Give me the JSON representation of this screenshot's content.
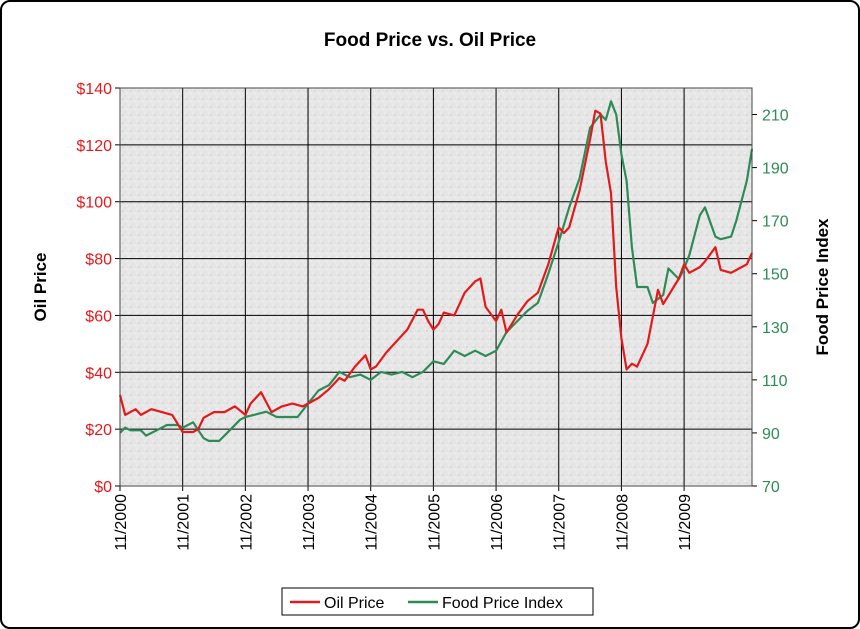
{
  "chart_data": {
    "type": "line",
    "title": "Food Price vs. Oil Price",
    "ylabel": "Oil Price",
    "y2label": "Food Price Index",
    "ylim": [
      0,
      140
    ],
    "y2lim": [
      70,
      220
    ],
    "yticks": [
      "$0",
      "$20",
      "$40",
      "$60",
      "$80",
      "$100",
      "$120",
      "$140"
    ],
    "y2ticks": [
      "70",
      "90",
      "110",
      "130",
      "150",
      "170",
      "190",
      "210"
    ],
    "x_tick_labels": [
      "11/2000",
      "11/2001",
      "11/2002",
      "11/2003",
      "11/2004",
      "11/2005",
      "11/2006",
      "11/2007",
      "11/2008",
      "11/2009"
    ],
    "x_range_months": [
      "11/2000",
      "12/2010"
    ],
    "grid": true,
    "legend_position": "bottom",
    "colors": {
      "oil": "#e31a1c",
      "food": "#2e8b57",
      "left_axis": "#e31a1c",
      "right_axis": "#2e8b57"
    },
    "series": [
      {
        "name": "Oil Price",
        "axis": "left",
        "points": [
          [
            "11/2000",
            32
          ],
          [
            "12/2000",
            25
          ],
          [
            "2/2001",
            27
          ],
          [
            "3/2001",
            25
          ],
          [
            "5/2001",
            27
          ],
          [
            "7/2001",
            26
          ],
          [
            "9/2001",
            25
          ],
          [
            "11/2001",
            19
          ],
          [
            "1/2002",
            19
          ],
          [
            "2/2002",
            20
          ],
          [
            "3/2002",
            24
          ],
          [
            "5/2002",
            26
          ],
          [
            "7/2002",
            26
          ],
          [
            "9/2002",
            28
          ],
          [
            "11/2002",
            25
          ],
          [
            "12/2002",
            29
          ],
          [
            "2/2003",
            33
          ],
          [
            "4/2003",
            26
          ],
          [
            "6/2003",
            28
          ],
          [
            "8/2003",
            29
          ],
          [
            "10/2003",
            28
          ],
          [
            "11/2003",
            29
          ],
          [
            "1/2004",
            31
          ],
          [
            "3/2004",
            34
          ],
          [
            "5/2004",
            38
          ],
          [
            "6/2004",
            37
          ],
          [
            "8/2004",
            42
          ],
          [
            "10/2004",
            46
          ],
          [
            "11/2004",
            41
          ],
          [
            "12/2004",
            42
          ],
          [
            "2/2005",
            47
          ],
          [
            "4/2005",
            51
          ],
          [
            "6/2005",
            55
          ],
          [
            "8/2005",
            62
          ],
          [
            "9/2005",
            62
          ],
          [
            "10/2005",
            58
          ],
          [
            "11/2005",
            55
          ],
          [
            "12/2005",
            57
          ],
          [
            "1/2006",
            61
          ],
          [
            "3/2006",
            60
          ],
          [
            "5/2006",
            68
          ],
          [
            "7/2006",
            72
          ],
          [
            "8/2006",
            73
          ],
          [
            "9/2006",
            63
          ],
          [
            "11/2006",
            58
          ],
          [
            "12/2006",
            62
          ],
          [
            "1/2007",
            54
          ],
          [
            "3/2007",
            60
          ],
          [
            "5/2007",
            65
          ],
          [
            "7/2007",
            68
          ],
          [
            "9/2007",
            78
          ],
          [
            "11/2007",
            91
          ],
          [
            "12/2007",
            89
          ],
          [
            "1/2008",
            91
          ],
          [
            "3/2008",
            104
          ],
          [
            "5/2008",
            122
          ],
          [
            "6/2008",
            132
          ],
          [
            "7/2008",
            131
          ],
          [
            "8/2008",
            114
          ],
          [
            "9/2008",
            103
          ],
          [
            "10/2008",
            70
          ],
          [
            "11/2008",
            52
          ],
          [
            "12/2008",
            41
          ],
          [
            "1/2009",
            43
          ],
          [
            "2/2009",
            42
          ],
          [
            "4/2009",
            50
          ],
          [
            "6/2009",
            69
          ],
          [
            "7/2009",
            64
          ],
          [
            "9/2009",
            70
          ],
          [
            "10/2009",
            73
          ],
          [
            "11/2009",
            78
          ],
          [
            "12/2009",
            75
          ],
          [
            "2/2010",
            77
          ],
          [
            "3/2010",
            79
          ],
          [
            "5/2010",
            84
          ],
          [
            "6/2010",
            76
          ],
          [
            "8/2010",
            75
          ],
          [
            "10/2010",
            77
          ],
          [
            "11/2010",
            78
          ],
          [
            "12/2010",
            82
          ]
        ]
      },
      {
        "name": "Food Price Index",
        "axis": "right",
        "points": [
          [
            "11/2000",
            90
          ],
          [
            "12/2000",
            92
          ],
          [
            "1/2001",
            91
          ],
          [
            "3/2001",
            91
          ],
          [
            "4/2001",
            89
          ],
          [
            "6/2001",
            91
          ],
          [
            "8/2001",
            93
          ],
          [
            "10/2001",
            93
          ],
          [
            "11/2001",
            92
          ],
          [
            "1/2002",
            94
          ],
          [
            "3/2002",
            88
          ],
          [
            "4/2002",
            87
          ],
          [
            "6/2002",
            87
          ],
          [
            "8/2002",
            91
          ],
          [
            "10/2002",
            95
          ],
          [
            "11/2002",
            96
          ],
          [
            "1/2003",
            97
          ],
          [
            "3/2003",
            98
          ],
          [
            "5/2003",
            96
          ],
          [
            "7/2003",
            96
          ],
          [
            "9/2003",
            96
          ],
          [
            "11/2003",
            101
          ],
          [
            "1/2004",
            106
          ],
          [
            "3/2004",
            108
          ],
          [
            "5/2004",
            113
          ],
          [
            "7/2004",
            111
          ],
          [
            "9/2004",
            112
          ],
          [
            "11/2004",
            110
          ],
          [
            "1/2005",
            113
          ],
          [
            "3/2005",
            112
          ],
          [
            "5/2005",
            113
          ],
          [
            "7/2005",
            111
          ],
          [
            "9/2005",
            113
          ],
          [
            "11/2005",
            117
          ],
          [
            "1/2006",
            116
          ],
          [
            "3/2006",
            121
          ],
          [
            "5/2006",
            119
          ],
          [
            "7/2006",
            121
          ],
          [
            "9/2006",
            119
          ],
          [
            "11/2006",
            121
          ],
          [
            "1/2007",
            128
          ],
          [
            "3/2007",
            132
          ],
          [
            "5/2007",
            136
          ],
          [
            "7/2007",
            139
          ],
          [
            "9/2007",
            150
          ],
          [
            "11/2007",
            162
          ],
          [
            "1/2008",
            175
          ],
          [
            "3/2008",
            186
          ],
          [
            "5/2008",
            205
          ],
          [
            "7/2008",
            210
          ],
          [
            "8/2008",
            208
          ],
          [
            "9/2008",
            215
          ],
          [
            "10/2008",
            210
          ],
          [
            "11/2008",
            195
          ],
          [
            "12/2008",
            185
          ],
          [
            "1/2009",
            160
          ],
          [
            "2/2009",
            145
          ],
          [
            "4/2009",
            145
          ],
          [
            "5/2009",
            139
          ],
          [
            "7/2009",
            142
          ],
          [
            "8/2009",
            152
          ],
          [
            "10/2009",
            148
          ],
          [
            "11/2009",
            152
          ],
          [
            "12/2009",
            157
          ],
          [
            "2/2010",
            172
          ],
          [
            "3/2010",
            175
          ],
          [
            "5/2010",
            164
          ],
          [
            "6/2010",
            163
          ],
          [
            "8/2010",
            164
          ],
          [
            "9/2010",
            170
          ],
          [
            "11/2010",
            185
          ],
          [
            "12/2010",
            197
          ]
        ]
      }
    ]
  }
}
